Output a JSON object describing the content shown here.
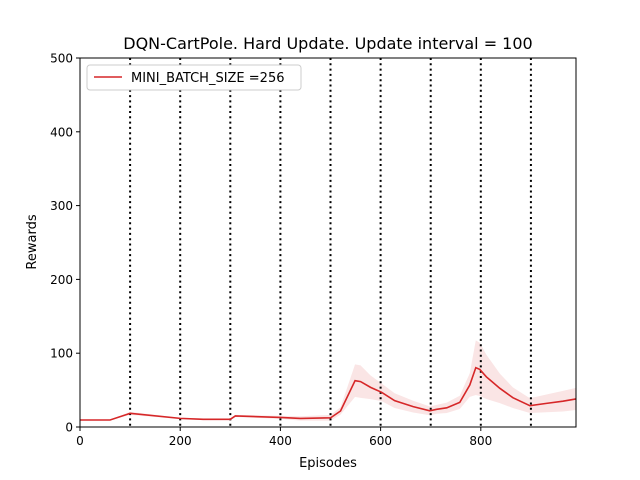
{
  "chart_data": {
    "type": "line",
    "title": "DQN-CartPole. Hard Update. Update interval = 100",
    "xlabel": "Episodes",
    "ylabel": "Rewards",
    "xlim": [
      0,
      990
    ],
    "ylim": [
      0,
      500
    ],
    "xticks": [
      0,
      200,
      400,
      600,
      800
    ],
    "yticks": [
      0,
      100,
      200,
      300,
      400,
      500
    ],
    "grid": false,
    "legend_placement": "top-left",
    "vertical_lines": [
      100,
      200,
      300,
      400,
      500,
      600,
      700,
      800,
      900
    ],
    "series": [
      {
        "name": "MINI_BATCH_SIZE =256",
        "color": "#d62728",
        "x": [
          0,
          60,
          100,
          200,
          246,
          300,
          310,
          400,
          440,
          500,
          520,
          549,
          560,
          580,
          602,
          628,
          665,
          698,
          712,
          732,
          758,
          778,
          790,
          798,
          811,
          838,
          864,
          898,
          931,
          964,
          990
        ],
        "values": [
          9.5,
          9.5,
          18.5,
          11.7,
          10.4,
          10.4,
          15,
          13,
          11.6,
          12.4,
          21.7,
          62.8,
          61.5,
          53.7,
          47,
          35.7,
          27.6,
          22,
          24,
          26,
          33.4,
          56.9,
          80.4,
          78,
          68,
          52.4,
          39.7,
          28.9,
          32,
          35,
          38
        ],
        "spread": [
          0.5,
          0.5,
          2,
          1,
          1,
          1,
          1.5,
          2,
          3,
          4,
          5,
          22,
          22,
          16,
          12,
          10,
          8,
          6,
          6,
          7,
          9,
          16,
          37,
          36,
          30,
          20,
          14,
          10,
          12,
          14,
          15
        ]
      }
    ]
  }
}
